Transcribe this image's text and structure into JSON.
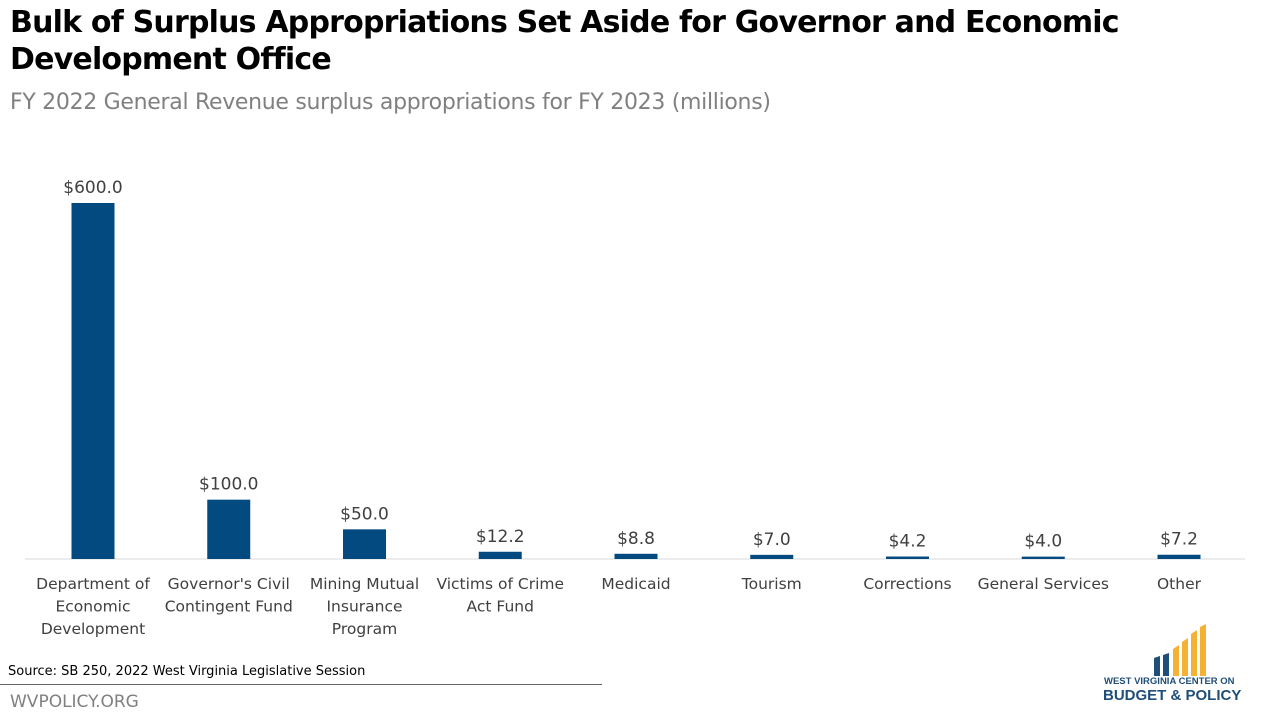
{
  "chart_data": {
    "type": "bar",
    "title": "Bulk of Surplus Appropriations Set Aside for Governor and Economic Development Office",
    "subtitle": "FY 2022 General Revenue surplus appropriations for FY 2023 (millions)",
    "categories": [
      [
        "Department of",
        "Economic",
        "Development"
      ],
      [
        "Governor's Civil",
        "Contingent Fund"
      ],
      [
        "Mining Mutual",
        "Insurance",
        "Program"
      ],
      [
        "Victims of Crime",
        "Act Fund"
      ],
      [
        "Medicaid"
      ],
      [
        "Tourism"
      ],
      [
        "Corrections"
      ],
      [
        "General Services"
      ],
      [
        "Other"
      ]
    ],
    "values": [
      600.0,
      100.0,
      50.0,
      12.2,
      8.8,
      7.0,
      4.2,
      4.0,
      7.2
    ],
    "data_labels": [
      "$600.0",
      "$100.0",
      "$50.0",
      "$12.2",
      "$8.8",
      "$7.0",
      "$4.2",
      "$4.0",
      "$7.2"
    ],
    "ylim": [
      0,
      600
    ],
    "grid": false,
    "bar_color": "#034a80"
  },
  "footer": {
    "source": "Source: SB 250, 2022 West Virginia Legislative Session",
    "site": "WVPOLICY.ORG"
  },
  "logo": {
    "line1": "WEST VIRGINIA CENTER ON",
    "line2": "BUDGET & POLICY"
  }
}
